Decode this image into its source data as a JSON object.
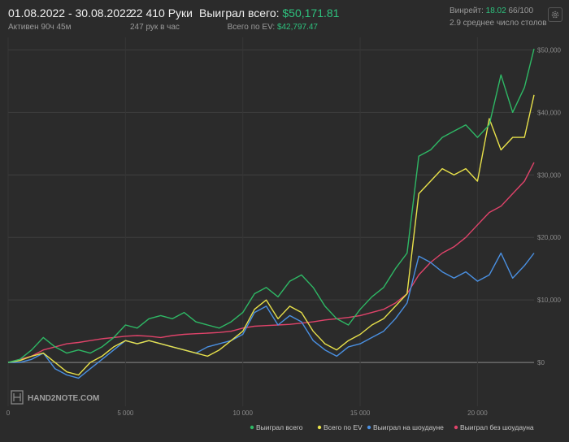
{
  "header": {
    "period": "01.08.2022 - 30.08.2022",
    "active": "Активен 90ч 45м",
    "hands": "22 410 Руки",
    "hands_per_hour": "247 рук в час",
    "won_label": "Выиграл всего:",
    "won_value": "$50,171.81",
    "ev_label": "Всего по EV:",
    "ev_value": "$42,797.47",
    "winrate_label": "Винрейт:",
    "winrate_value": "18.02",
    "winrate_unit": "66/100",
    "tables": "2.9 среднее число столов"
  },
  "watermark": "HAND2NOTE.COM",
  "colors": {
    "won": "#2eb865",
    "ev": "#e8e14a",
    "showdown": "#4a90e2",
    "nonshowdown": "#e0436a",
    "accent": "#2ec27e"
  },
  "chart_data": {
    "type": "line",
    "xlabel": "",
    "ylabel": "",
    "xlim": [
      0,
      22410
    ],
    "ylim": [
      -7000,
      52000
    ],
    "x_ticks": [
      0,
      5000,
      10000,
      15000,
      20000
    ],
    "x_tick_labels": [
      "0",
      "5 000",
      "10 000",
      "15 000",
      "20 000"
    ],
    "y_ticks": [
      0,
      10000,
      20000,
      30000,
      40000,
      50000
    ],
    "y_tick_labels": [
      "$0",
      "$10,000",
      "$20,000",
      "$30,000",
      "$40,000",
      "$50,000"
    ],
    "grid": true,
    "legend_position": "bottom-right",
    "x": [
      0,
      500,
      1000,
      1500,
      2000,
      2500,
      3000,
      3500,
      4000,
      4500,
      5000,
      5500,
      6000,
      6500,
      7000,
      7500,
      8000,
      8500,
      9000,
      9500,
      10000,
      10500,
      11000,
      11500,
      12000,
      12500,
      13000,
      13500,
      14000,
      14500,
      15000,
      15500,
      16000,
      16500,
      17000,
      17500,
      18000,
      18500,
      19000,
      19500,
      20000,
      20500,
      21000,
      21500,
      22000,
      22410
    ],
    "series": [
      {
        "name": "Выиграл всего",
        "color_key": "won",
        "values": [
          0,
          500,
          2000,
          4000,
          2500,
          1500,
          2000,
          1500,
          2500,
          4000,
          6000,
          5500,
          7000,
          7500,
          7000,
          8000,
          6500,
          6000,
          5500,
          6500,
          8000,
          11000,
          12000,
          10500,
          13000,
          14000,
          12000,
          9000,
          7000,
          6000,
          8500,
          10500,
          12000,
          15000,
          17500,
          33000,
          34000,
          36000,
          37000,
          38000,
          36000,
          38000,
          46000,
          40000,
          44000,
          50171
        ]
      },
      {
        "name": "Всего по EV",
        "color_key": "ev",
        "values": [
          0,
          300,
          1000,
          1500,
          0,
          -1500,
          -2000,
          0,
          1000,
          2500,
          3500,
          3000,
          3500,
          3000,
          2500,
          2000,
          1500,
          1000,
          2000,
          3500,
          5000,
          8500,
          10000,
          7000,
          9000,
          8000,
          5000,
          3000,
          2000,
          3500,
          4500,
          6000,
          7000,
          9000,
          11000,
          27000,
          29000,
          31000,
          30000,
          31000,
          29000,
          39000,
          34000,
          36000,
          36000,
          42797
        ]
      },
      {
        "name": "Выиграл на шоудауне",
        "color_key": "showdown",
        "values": [
          0,
          0,
          500,
          1500,
          -1000,
          -2000,
          -2500,
          -1000,
          500,
          2000,
          3500,
          3000,
          3500,
          3000,
          2500,
          2000,
          1500,
          2500,
          3000,
          3500,
          4500,
          8000,
          9000,
          6000,
          7500,
          6500,
          3500,
          2000,
          1000,
          2500,
          3000,
          4000,
          5000,
          7000,
          9500,
          17000,
          16000,
          14500,
          13500,
          14500,
          13000,
          14000,
          17500,
          13500,
          15500,
          17500
        ]
      },
      {
        "name": "Выиграл без шоудауна",
        "color_key": "nonshowdown",
        "values": [
          0,
          500,
          1000,
          2000,
          2500,
          3000,
          3200,
          3500,
          3800,
          4000,
          4200,
          4300,
          4200,
          4000,
          4300,
          4500,
          4600,
          4700,
          4800,
          5000,
          5500,
          5800,
          5900,
          6000,
          6100,
          6300,
          6500,
          6800,
          7000,
          7200,
          7500,
          8000,
          8500,
          9500,
          11000,
          14000,
          16000,
          17500,
          18500,
          20000,
          22000,
          24000,
          25000,
          27000,
          29000,
          32000
        ]
      }
    ]
  }
}
